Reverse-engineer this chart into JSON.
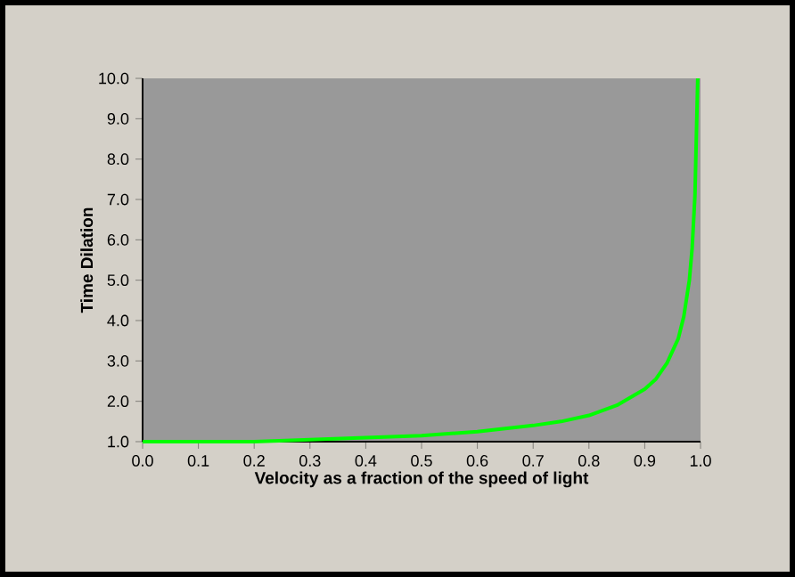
{
  "chart_data": {
    "type": "line",
    "xlabel": "Velocity as a fraction of the speed of light",
    "ylabel": "Time Dilation",
    "x": [
      0,
      0.1,
      0.2,
      0.3,
      0.4,
      0.5,
      0.6,
      0.7,
      0.75,
      0.8,
      0.85,
      0.9,
      0.92,
      0.94,
      0.96,
      0.97,
      0.98,
      0.985,
      0.99,
      0.995
    ],
    "series": [
      {
        "color": "#00ff00",
        "values": [
          1.0,
          1.0,
          1.0,
          1.05,
          1.1,
          1.15,
          1.25,
          1.4,
          1.5,
          1.65,
          1.9,
          2.3,
          2.55,
          2.95,
          3.55,
          4.1,
          5.0,
          5.8,
          7.1,
          10.0
        ]
      }
    ],
    "xlim": [
      0,
      1
    ],
    "ylim": [
      1,
      10
    ],
    "xticks": [
      {
        "value": 0,
        "label": "0.0"
      },
      {
        "value": 0.1,
        "label": "0.1"
      },
      {
        "value": 0.2,
        "label": "0.2"
      },
      {
        "value": 0.3,
        "label": "0.3"
      },
      {
        "value": 0.4,
        "label": "0.4"
      },
      {
        "value": 0.5,
        "label": "0.5"
      },
      {
        "value": 0.6,
        "label": "0.6"
      },
      {
        "value": 0.7,
        "label": "0.7"
      },
      {
        "value": 0.8,
        "label": "0.8"
      },
      {
        "value": 0.9,
        "label": "0.9"
      },
      {
        "value": 1,
        "label": "1.0"
      }
    ],
    "yticks": [
      {
        "value": 1,
        "label": "1.0"
      },
      {
        "value": 2,
        "label": "2.0"
      },
      {
        "value": 3,
        "label": "3.0"
      },
      {
        "value": 4,
        "label": "4.0"
      },
      {
        "value": 5,
        "label": "5.0"
      },
      {
        "value": 6,
        "label": "6.0"
      },
      {
        "value": 7,
        "label": "7.0"
      },
      {
        "value": 8,
        "label": "8.0"
      },
      {
        "value": 9,
        "label": "9.0"
      },
      {
        "value": 10,
        "label": "10.0"
      }
    ],
    "grid": false,
    "marker": "none",
    "line_style": "solid"
  }
}
